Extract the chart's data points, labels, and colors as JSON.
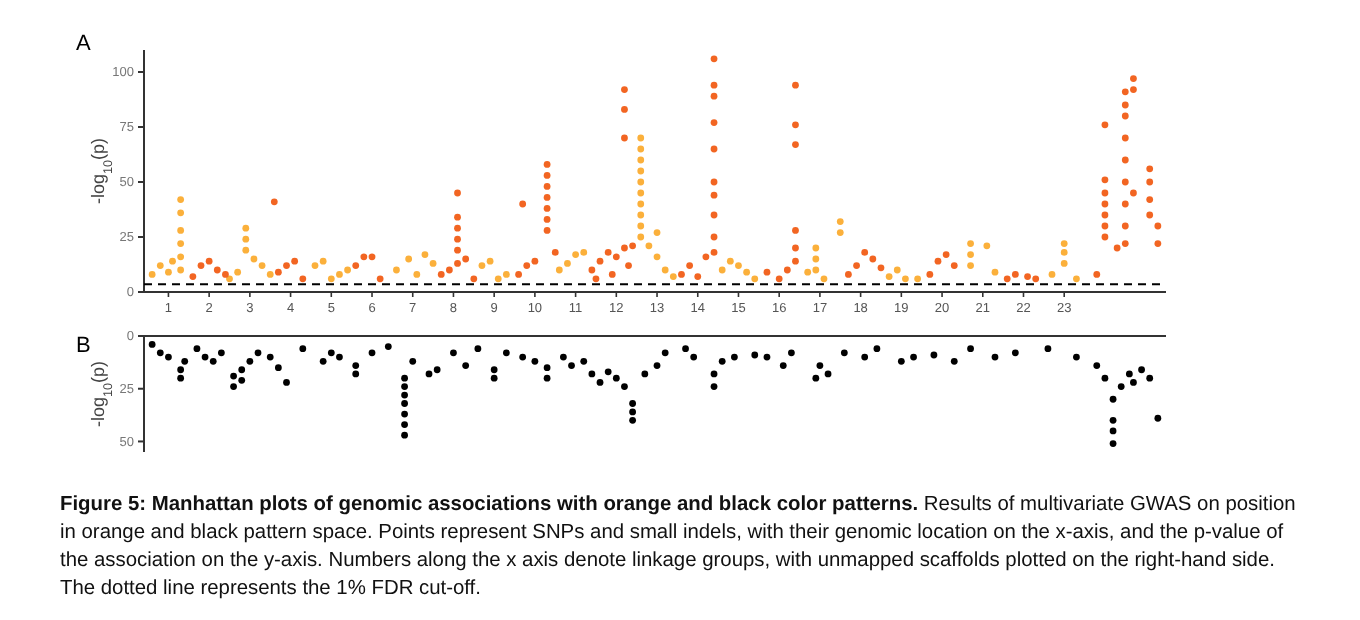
{
  "chart_data": [
    {
      "type": "scatter",
      "title": "A",
      "ylabel": "-log$_{10}$(p)",
      "xlim": [
        0.4,
        25.5
      ],
      "ylim": [
        0,
        110
      ],
      "yticks": [
        0,
        25,
        50,
        75,
        100
      ],
      "xticks": [
        1,
        2,
        3,
        4,
        5,
        6,
        7,
        8,
        9,
        10,
        11,
        12,
        13,
        14,
        15,
        16,
        17,
        18,
        19,
        20,
        21,
        22,
        23
      ],
      "marker": "circle",
      "ref_lines": [
        {
          "axis": "y",
          "value": 3.5,
          "line_style": "dashed",
          "color": "#000000"
        }
      ],
      "series": [
        {
          "color": "#fbb03b",
          "x": [
            0.6,
            0.8,
            1.0,
            1.1,
            1.3,
            1.3,
            1.3,
            1.3,
            1.3,
            1.3,
            2.5,
            2.7,
            2.9,
            2.9,
            2.9,
            3.1,
            3.3,
            3.5,
            4.6,
            4.8,
            5.0,
            5.2,
            5.4,
            6.6,
            6.9,
            7.1,
            7.3,
            7.5,
            8.7,
            8.9,
            9.1,
            9.3,
            10.6,
            10.8,
            11.0,
            11.2,
            12.6,
            12.6,
            12.6,
            12.6,
            12.6,
            12.6,
            12.6,
            12.6,
            12.6,
            12.6,
            12.8,
            13.0,
            13.0,
            13.2,
            13.4,
            14.6,
            14.8,
            15.0,
            15.2,
            15.4,
            16.7,
            16.9,
            16.9,
            16.9,
            17.1,
            17.5,
            17.5,
            18.7,
            18.9,
            19.1,
            19.4,
            20.7,
            20.7,
            20.7,
            21.1,
            21.3,
            23.0,
            23.0,
            23.0,
            22.7,
            23.3
          ],
          "values": [
            8,
            12,
            9,
            14,
            42,
            36,
            28,
            22,
            16,
            10,
            6,
            9,
            29,
            24,
            19,
            15,
            12,
            8,
            12,
            14,
            6,
            8,
            10,
            10,
            15,
            8,
            17,
            13,
            12,
            14,
            6,
            8,
            10,
            13,
            17,
            18,
            70,
            65,
            60,
            55,
            50,
            45,
            40,
            35,
            30,
            25,
            21,
            16,
            27,
            10,
            7,
            10,
            14,
            12,
            9,
            6,
            9,
            20,
            15,
            10,
            6,
            32,
            27,
            7,
            10,
            6,
            6,
            22,
            17,
            12,
            21,
            9,
            22,
            18,
            13,
            8,
            6
          ]
        },
        {
          "color": "#f26522",
          "x": [
            1.6,
            1.8,
            2.0,
            2.2,
            2.4,
            3.6,
            3.7,
            3.9,
            4.1,
            4.3,
            5.6,
            5.8,
            6.0,
            6.2,
            7.7,
            7.9,
            8.1,
            8.1,
            8.1,
            8.1,
            8.1,
            8.1,
            8.3,
            8.5,
            9.6,
            9.7,
            9.8,
            10.0,
            10.3,
            10.3,
            10.3,
            10.3,
            10.3,
            10.3,
            10.3,
            10.5,
            11.4,
            11.5,
            11.6,
            11.8,
            11.9,
            12.0,
            12.2,
            12.3,
            12.4,
            12.2,
            12.2,
            12.2,
            13.6,
            13.8,
            14.0,
            14.2,
            14.4,
            14.4,
            14.4,
            14.4,
            14.4,
            14.4,
            14.4,
            14.4,
            14.4,
            14.4,
            15.7,
            16.0,
            16.2,
            16.4,
            16.4,
            16.4,
            16.4,
            16.4,
            16.4,
            17.7,
            17.9,
            18.1,
            18.3,
            18.5,
            19.7,
            19.9,
            20.1,
            20.3,
            21.6,
            21.8,
            22.1,
            22.3,
            23.8,
            24.0,
            24.0,
            24.0,
            24.0,
            24.0,
            24.0,
            24.0,
            24.3,
            24.5,
            24.5,
            24.5,
            24.5,
            24.5,
            24.5,
            24.5,
            24.5,
            24.5,
            24.7,
            24.7,
            24.7,
            25.1,
            25.1,
            25.1,
            25.1,
            25.3,
            25.3
          ],
          "values": [
            7,
            12,
            14,
            10,
            8,
            41,
            9,
            12,
            14,
            6,
            12,
            16,
            16,
            6,
            8,
            10,
            45,
            34,
            29,
            24,
            19,
            13,
            15,
            6,
            8,
            40,
            12,
            14,
            58,
            53,
            48,
            43,
            38,
            33,
            28,
            18,
            10,
            6,
            14,
            18,
            8,
            16,
            20,
            12,
            21,
            92,
            83,
            70,
            8,
            12,
            7,
            16,
            106,
            94,
            89,
            77,
            65,
            50,
            44,
            35,
            25,
            18,
            9,
            6,
            10,
            94,
            76,
            67,
            28,
            20,
            14,
            8,
            12,
            18,
            15,
            11,
            8,
            14,
            17,
            12,
            6,
            8,
            7,
            6,
            8,
            76,
            51,
            45,
            40,
            35,
            30,
            25,
            20,
            91,
            85,
            80,
            70,
            60,
            50,
            40,
            30,
            22,
            97,
            92,
            45,
            56,
            50,
            42,
            35,
            30,
            22
          ]
        }
      ]
    },
    {
      "type": "scatter",
      "title": "B",
      "ylabel": "-log$_{10}$(p)",
      "xlim": [
        0.4,
        25.5
      ],
      "ylim": [
        55,
        0
      ],
      "yticks": [
        0,
        25,
        50
      ],
      "tick_labels": "y",
      "marker": "circle",
      "annotations": [
        "Figure 5: Manhattan plots of genomic associations with orange and black color patterns.",
        "Results of multivariate GWAS on position in orange and black pattern space. Points represent SNPs and small indels, with their genomic location on the x-axis, and the p-value of the association on the y-axis. Numbers along the x axis denote linkage groups, with unmapped scaffolds plotted on the right-hand side. The dotted line represents the 1% FDR cut-off."
      ],
      "series": [
        {
          "color": "#000000",
          "x": [
            0.6,
            0.8,
            1.0,
            1.3,
            1.3,
            1.4,
            1.7,
            1.9,
            2.1,
            2.3,
            2.6,
            2.6,
            2.8,
            2.8,
            3.0,
            3.2,
            3.5,
            3.9,
            3.7,
            4.3,
            4.8,
            5.0,
            5.2,
            5.6,
            5.6,
            6.0,
            6.4,
            6.8,
            6.8,
            6.8,
            6.8,
            6.8,
            6.8,
            6.8,
            7.0,
            7.4,
            7.6,
            8.0,
            8.3,
            8.6,
            9.0,
            9.0,
            9.3,
            9.7,
            10.0,
            10.3,
            10.3,
            10.7,
            10.9,
            11.2,
            11.4,
            11.6,
            11.8,
            12.0,
            12.2,
            12.4,
            12.4,
            12.4,
            12.7,
            13.0,
            13.2,
            13.7,
            13.9,
            14.4,
            14.4,
            14.6,
            14.9,
            15.4,
            15.7,
            16.1,
            16.3,
            16.9,
            17.2,
            17.0,
            17.6,
            18.1,
            18.4,
            19.0,
            19.3,
            19.8,
            20.3,
            20.7,
            21.3,
            21.8,
            22.6,
            23.3,
            23.8,
            24.0,
            24.2,
            24.2,
            24.2,
            24.2,
            24.4,
            24.6,
            24.7,
            24.9,
            25.3,
            25.1
          ],
          "values": [
            4,
            8,
            10,
            20,
            16,
            12,
            6,
            10,
            12,
            8,
            24,
            19,
            21,
            16,
            12,
            8,
            10,
            22,
            15,
            6,
            12,
            8,
            10,
            18,
            14,
            8,
            5,
            47,
            42,
            37,
            32,
            28,
            24,
            20,
            12,
            18,
            16,
            8,
            14,
            6,
            20,
            16,
            8,
            10,
            12,
            20,
            15,
            10,
            14,
            12,
            18,
            22,
            17,
            20,
            24,
            32,
            36,
            40,
            18,
            14,
            8,
            6,
            10,
            24,
            18,
            12,
            10,
            9,
            10,
            14,
            8,
            20,
            18,
            14,
            8,
            10,
            6,
            12,
            10,
            9,
            12,
            6,
            10,
            8,
            6,
            10,
            14,
            20,
            51,
            45,
            40,
            30,
            24,
            18,
            22,
            16,
            39,
            20
          ]
        }
      ]
    }
  ]
}
